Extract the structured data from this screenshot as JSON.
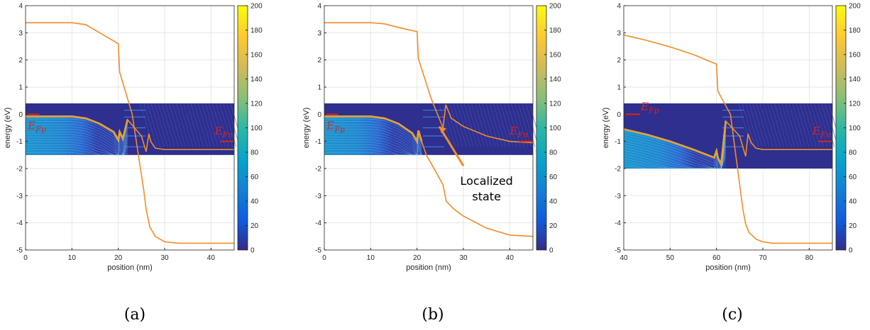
{
  "chart_data": [
    {
      "type": "line",
      "panel_label": "(a)",
      "xlabel": "position (nm)",
      "ylabel": "energy (eV)",
      "xlim": [
        0,
        45
      ],
      "ylim": [
        -5,
        4
      ],
      "xticks": [
        0,
        10,
        20,
        30,
        40
      ],
      "yticks": [
        -5,
        -4,
        -3,
        -2,
        -1,
        0,
        1,
        2,
        3,
        4
      ],
      "grid": true,
      "colorbar": {
        "range": [
          0,
          200
        ],
        "ticks": [
          0,
          20,
          40,
          60,
          80,
          100,
          120,
          140,
          160,
          180,
          200
        ]
      },
      "heatmap_band": {
        "ymin": -1.5,
        "ymax": 0.4,
        "x_end": 45
      },
      "annotations": [
        {
          "text": "E",
          "sub": "Fp",
          "x": 0.5,
          "y": -0.55
        },
        {
          "text": "E",
          "sub": "Fn",
          "x": 40.8,
          "y": -0.75
        }
      ],
      "fermi_levels": [
        {
          "y": 0.0,
          "x0": 0,
          "x1": 3
        },
        {
          "y": -1.0,
          "x0": 42,
          "x1": 45
        }
      ],
      "series": [
        {
          "x": [
            0,
            10,
            13,
            16,
            19,
            20,
            20.3,
            23,
            25.5,
            26,
            26.8,
            28,
            30,
            33,
            45
          ],
          "y": [
            3.37,
            3.37,
            3.3,
            3.0,
            2.7,
            2.6,
            1.55,
            0.0,
            -2.8,
            -3.5,
            -4.15,
            -4.5,
            -4.7,
            -4.75,
            -4.75
          ]
        },
        {
          "x": [
            0,
            10,
            13,
            16,
            19,
            20,
            20.3,
            21,
            22,
            25,
            26,
            26.6,
            27,
            28,
            30,
            45
          ],
          "y": [
            -0.08,
            -0.08,
            -0.15,
            -0.35,
            -0.65,
            -0.95,
            -0.65,
            -0.9,
            -0.2,
            -0.8,
            -1.38,
            -0.72,
            -1.0,
            -1.25,
            -1.3,
            -1.3
          ]
        }
      ]
    },
    {
      "type": "line",
      "panel_label": "(b)",
      "xlabel": "position (nm)",
      "ylabel": "energy (eV)",
      "xlim": [
        0,
        45
      ],
      "ylim": [
        -5,
        4
      ],
      "xticks": [
        0,
        10,
        20,
        30,
        40
      ],
      "yticks": [
        -5,
        -4,
        -3,
        -2,
        -1,
        0,
        1,
        2,
        3,
        4
      ],
      "grid": true,
      "colorbar": {
        "range": [
          0,
          200
        ],
        "ticks": [
          0,
          20,
          40,
          60,
          80,
          100,
          120,
          140,
          160,
          180,
          200
        ]
      },
      "heatmap_band": {
        "ymin": -1.5,
        "ymax": 0.4,
        "x_end": 45
      },
      "annotations": [
        {
          "text": "E",
          "sub": "Fp",
          "x": 0.5,
          "y": -0.55
        },
        {
          "text": "E",
          "sub": "Fn",
          "x": 40.0,
          "y": -0.75
        },
        {
          "text": "Localized state",
          "x": 35,
          "y": -2.6
        }
      ],
      "fermi_levels": [
        {
          "y": 0.0,
          "x0": 0,
          "x1": 3
        },
        {
          "y": -1.0,
          "x0": 42,
          "x1": 45
        }
      ],
      "series": [
        {
          "x": [
            0,
            10,
            13,
            16,
            19,
            20,
            20.3,
            23,
            25.6,
            26.2,
            27.4,
            30,
            35,
            40,
            45
          ],
          "y": [
            3.37,
            3.37,
            3.33,
            3.2,
            3.08,
            3.05,
            2.05,
            0.6,
            -0.5,
            0.35,
            -0.15,
            -0.45,
            -0.8,
            -1.0,
            -1.05
          ]
        },
        {
          "x": [
            0,
            10,
            13,
            16,
            19,
            20,
            20.3,
            21,
            22,
            24,
            25.6,
            26.3,
            27.4,
            28,
            30,
            35,
            40,
            45
          ],
          "y": [
            -0.08,
            -0.08,
            -0.15,
            -0.35,
            -0.7,
            -1.0,
            -0.6,
            -1.0,
            -1.5,
            -2.1,
            -2.6,
            -3.2,
            -3.4,
            -3.5,
            -3.75,
            -4.2,
            -4.45,
            -4.5
          ]
        }
      ],
      "arrow": {
        "from": [
          30,
          -1.9
        ],
        "to": [
          24.8,
          -0.45
        ]
      }
    },
    {
      "type": "line",
      "panel_label": "(c)",
      "xlabel": "position (nm)",
      "ylabel": "energy (eV)",
      "xlim": [
        40,
        85
      ],
      "ylim": [
        -5,
        4
      ],
      "xticks": [
        40,
        50,
        60,
        70,
        80
      ],
      "yticks": [
        -5,
        -4,
        -3,
        -2,
        -1,
        0,
        1,
        2,
        3,
        4
      ],
      "grid": true,
      "colorbar": {
        "range": [
          0,
          200
        ],
        "ticks": [
          0,
          20,
          40,
          60,
          80,
          100,
          120,
          140,
          160,
          180,
          200
        ]
      },
      "heatmap_band": {
        "ymin": -2.0,
        "ymax": 0.4,
        "x_end": 85
      },
      "annotations": [
        {
          "text": "E",
          "sub": "Fp",
          "x": 43.7,
          "y": 0.15
        },
        {
          "text": "E",
          "sub": "Fn",
          "x": 80.7,
          "y": -0.75
        }
      ],
      "fermi_levels": [
        {
          "y": 0.0,
          "x0": 40,
          "x1": 43.5
        },
        {
          "y": -1.0,
          "x0": 82,
          "x1": 85
        }
      ],
      "series": [
        {
          "x": [
            40,
            45,
            50,
            55,
            59.5,
            60,
            60.3,
            63,
            65.7,
            66.3,
            67,
            68.5,
            70,
            72,
            85
          ],
          "y": [
            2.92,
            2.72,
            2.48,
            2.2,
            1.88,
            1.85,
            0.85,
            0.0,
            -3.5,
            -4.05,
            -4.35,
            -4.6,
            -4.7,
            -4.75,
            -4.75
          ]
        },
        {
          "x": [
            40,
            45,
            50,
            55,
            59.5,
            60,
            60.3,
            61,
            62,
            65,
            66.3,
            66.8,
            67.5,
            68.5,
            70,
            85
          ],
          "y": [
            -0.55,
            -0.75,
            -1.0,
            -1.3,
            -1.6,
            -1.35,
            -1.6,
            -1.85,
            -0.25,
            -0.8,
            -1.55,
            -0.72,
            -1.05,
            -1.25,
            -1.3,
            -1.3
          ]
        }
      ]
    }
  ]
}
